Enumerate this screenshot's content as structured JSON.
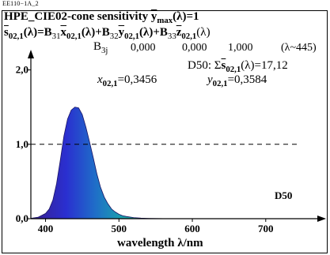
{
  "ref_code": "EE110−1A_2",
  "title": {
    "prefix": "HPE_CIE02-cone sensitivity ",
    "y": "y",
    "max": "max",
    "suffix": "(λ)=1"
  },
  "equation": {
    "s": "s",
    "s_sub": "02,1",
    "lam": "(λ)=B",
    "b31_sub": "31",
    "x": "x",
    "x_sub": "02,1",
    "plus1": "(λ)+B",
    "b32_sub": "32",
    "y": "y",
    "y_sub": "02,1",
    "plus2": "(λ)+B",
    "b33_sub": "33",
    "z": "z",
    "z_sub": "02,1",
    "end": "(λ)"
  },
  "b3j": {
    "label_b": "B",
    "label_sub": "3j",
    "values": [
      "0,000",
      "0,000",
      "1,000"
    ],
    "note": "(λ~445)"
  },
  "d50_sum": {
    "prefix": "D50: Σ",
    "s": "s",
    "sub": "02,1",
    "suffix": "(λ)=17,12"
  },
  "chromaticity": {
    "x_label": "x",
    "x_sub": "02,1",
    "x_value": "=0,3456",
    "y_label": "y",
    "y_sub": "02,1",
    "y_value": "=0,3584"
  },
  "illuminant_tag": "D50",
  "chart_data": {
    "type": "area",
    "title": "HPE_CIE02-cone sensitivity y max(λ)=1",
    "xlabel": "wavelength λ/nm",
    "ylabel": "",
    "xlim": [
      380,
      780
    ],
    "ylim": [
      0,
      2.25
    ],
    "x_ticks": [
      400,
      500,
      600,
      700
    ],
    "x_tick_labels": [
      "400",
      "500",
      "600",
      "700"
    ],
    "y_ticks": [
      0,
      1,
      2
    ],
    "y_tick_labels": [
      "0,0",
      "1,0",
      "2,0"
    ],
    "reference_line": {
      "y": 1.0,
      "style": "dashed"
    },
    "series": [
      {
        "x": [
          380,
          390,
          400,
          405,
          410,
          415,
          420,
          425,
          430,
          435,
          440,
          445,
          450,
          455,
          460,
          465,
          470,
          475,
          480,
          485,
          490,
          495,
          500,
          505,
          510,
          520,
          530,
          540,
          550,
          560,
          570,
          580,
          600,
          620,
          640,
          660,
          680,
          700,
          720,
          740,
          760,
          780
        ],
        "values": [
          0.005,
          0.02,
          0.07,
          0.13,
          0.25,
          0.47,
          0.78,
          1.11,
          1.34,
          1.46,
          1.5,
          1.49,
          1.4,
          1.23,
          1.03,
          0.82,
          0.6,
          0.42,
          0.29,
          0.2,
          0.13,
          0.09,
          0.06,
          0.04,
          0.03,
          0.015,
          0.008,
          0.004,
          0.002,
          0.001,
          0.0005,
          0.0003,
          0.0002,
          0.0001,
          0.0001,
          0.0001,
          0.0001,
          0.0001,
          0.0001,
          0.0001,
          0.0001,
          0.0001
        ]
      }
    ]
  }
}
